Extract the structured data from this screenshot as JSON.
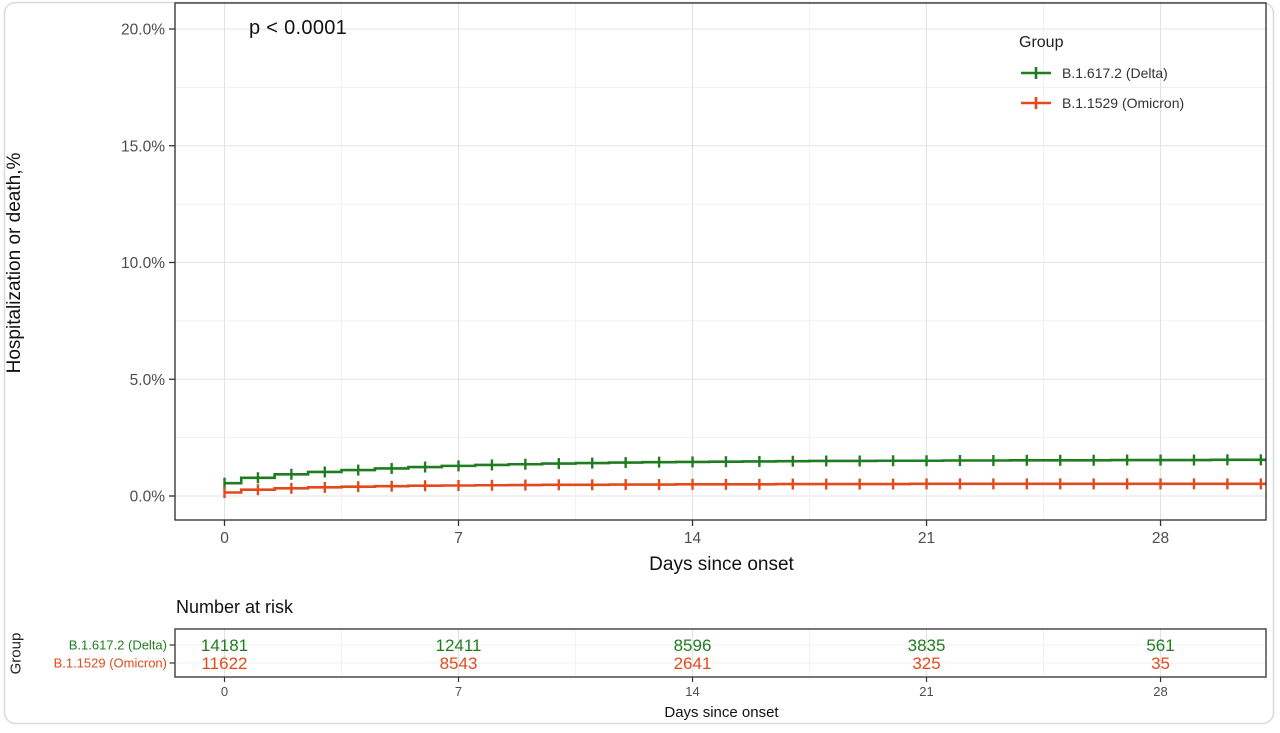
{
  "chart_data": {
    "type": "line",
    "subtype": "kaplan-meier-cumulative-incidence-step-curves",
    "title": "",
    "annotation": "p < 0.0001",
    "xlabel": "Days since onset",
    "ylabel": "Hospitalization or death,%",
    "xlim": [
      -1.5,
      31.2
    ],
    "ylim": [
      -1.0,
      21.1
    ],
    "x_ticks": [
      0,
      7,
      14,
      21,
      28
    ],
    "y_ticks": [
      {
        "value": 0,
        "label": "0.0%"
      },
      {
        "value": 5,
        "label": "5.0%"
      },
      {
        "value": 10,
        "label": "10.0%"
      },
      {
        "value": 15,
        "label": "15.0%"
      },
      {
        "value": 20,
        "label": "20.0%"
      }
    ],
    "grid": {
      "major": true,
      "minor": true,
      "background": "#ffffff"
    },
    "legend": {
      "title": "Group",
      "position": "top-right-inside"
    },
    "x_days": [
      0,
      1,
      2,
      3,
      4,
      5,
      6,
      7,
      8,
      9,
      10,
      11,
      12,
      13,
      14,
      15,
      16,
      17,
      18,
      19,
      20,
      21,
      22,
      23,
      24,
      25,
      26,
      27,
      28,
      29,
      30,
      31
    ],
    "series": [
      {
        "name": "B.1.617.2 (Delta)",
        "color": "#1f7d20",
        "censor_mark": "plus-at-each-day",
        "values_pct": [
          0.55,
          0.78,
          0.93,
          1.03,
          1.11,
          1.18,
          1.24,
          1.29,
          1.33,
          1.36,
          1.39,
          1.41,
          1.43,
          1.45,
          1.46,
          1.47,
          1.48,
          1.49,
          1.5,
          1.5,
          1.51,
          1.51,
          1.52,
          1.52,
          1.53,
          1.53,
          1.53,
          1.54,
          1.54,
          1.54,
          1.55,
          1.55
        ]
      },
      {
        "name": "B.1.1529 (Omicron)",
        "color": "#e24a1d",
        "censor_mark": "plus-at-each-day",
        "values_pct": [
          0.15,
          0.27,
          0.33,
          0.37,
          0.4,
          0.42,
          0.44,
          0.45,
          0.46,
          0.47,
          0.48,
          0.48,
          0.49,
          0.49,
          0.5,
          0.5,
          0.5,
          0.51,
          0.51,
          0.51,
          0.51,
          0.52,
          0.52,
          0.52,
          0.52,
          0.52,
          0.52,
          0.52,
          0.52,
          0.52,
          0.52,
          0.52
        ]
      }
    ],
    "risk_table": {
      "title": "Number at risk",
      "group_axis_label": "Group",
      "xlabel": "Days since onset",
      "x_ticks": [
        0,
        7,
        14,
        21,
        28
      ],
      "rows": [
        {
          "label": "B.1.617.2 (Delta)",
          "color": "#1f7d20",
          "values": [
            14181,
            12411,
            8596,
            3835,
            561
          ]
        },
        {
          "label": "B.1.1529 (Omicron)",
          "color": "#e24a1d",
          "values": [
            11622,
            8543,
            2641,
            325,
            35
          ]
        }
      ]
    }
  }
}
